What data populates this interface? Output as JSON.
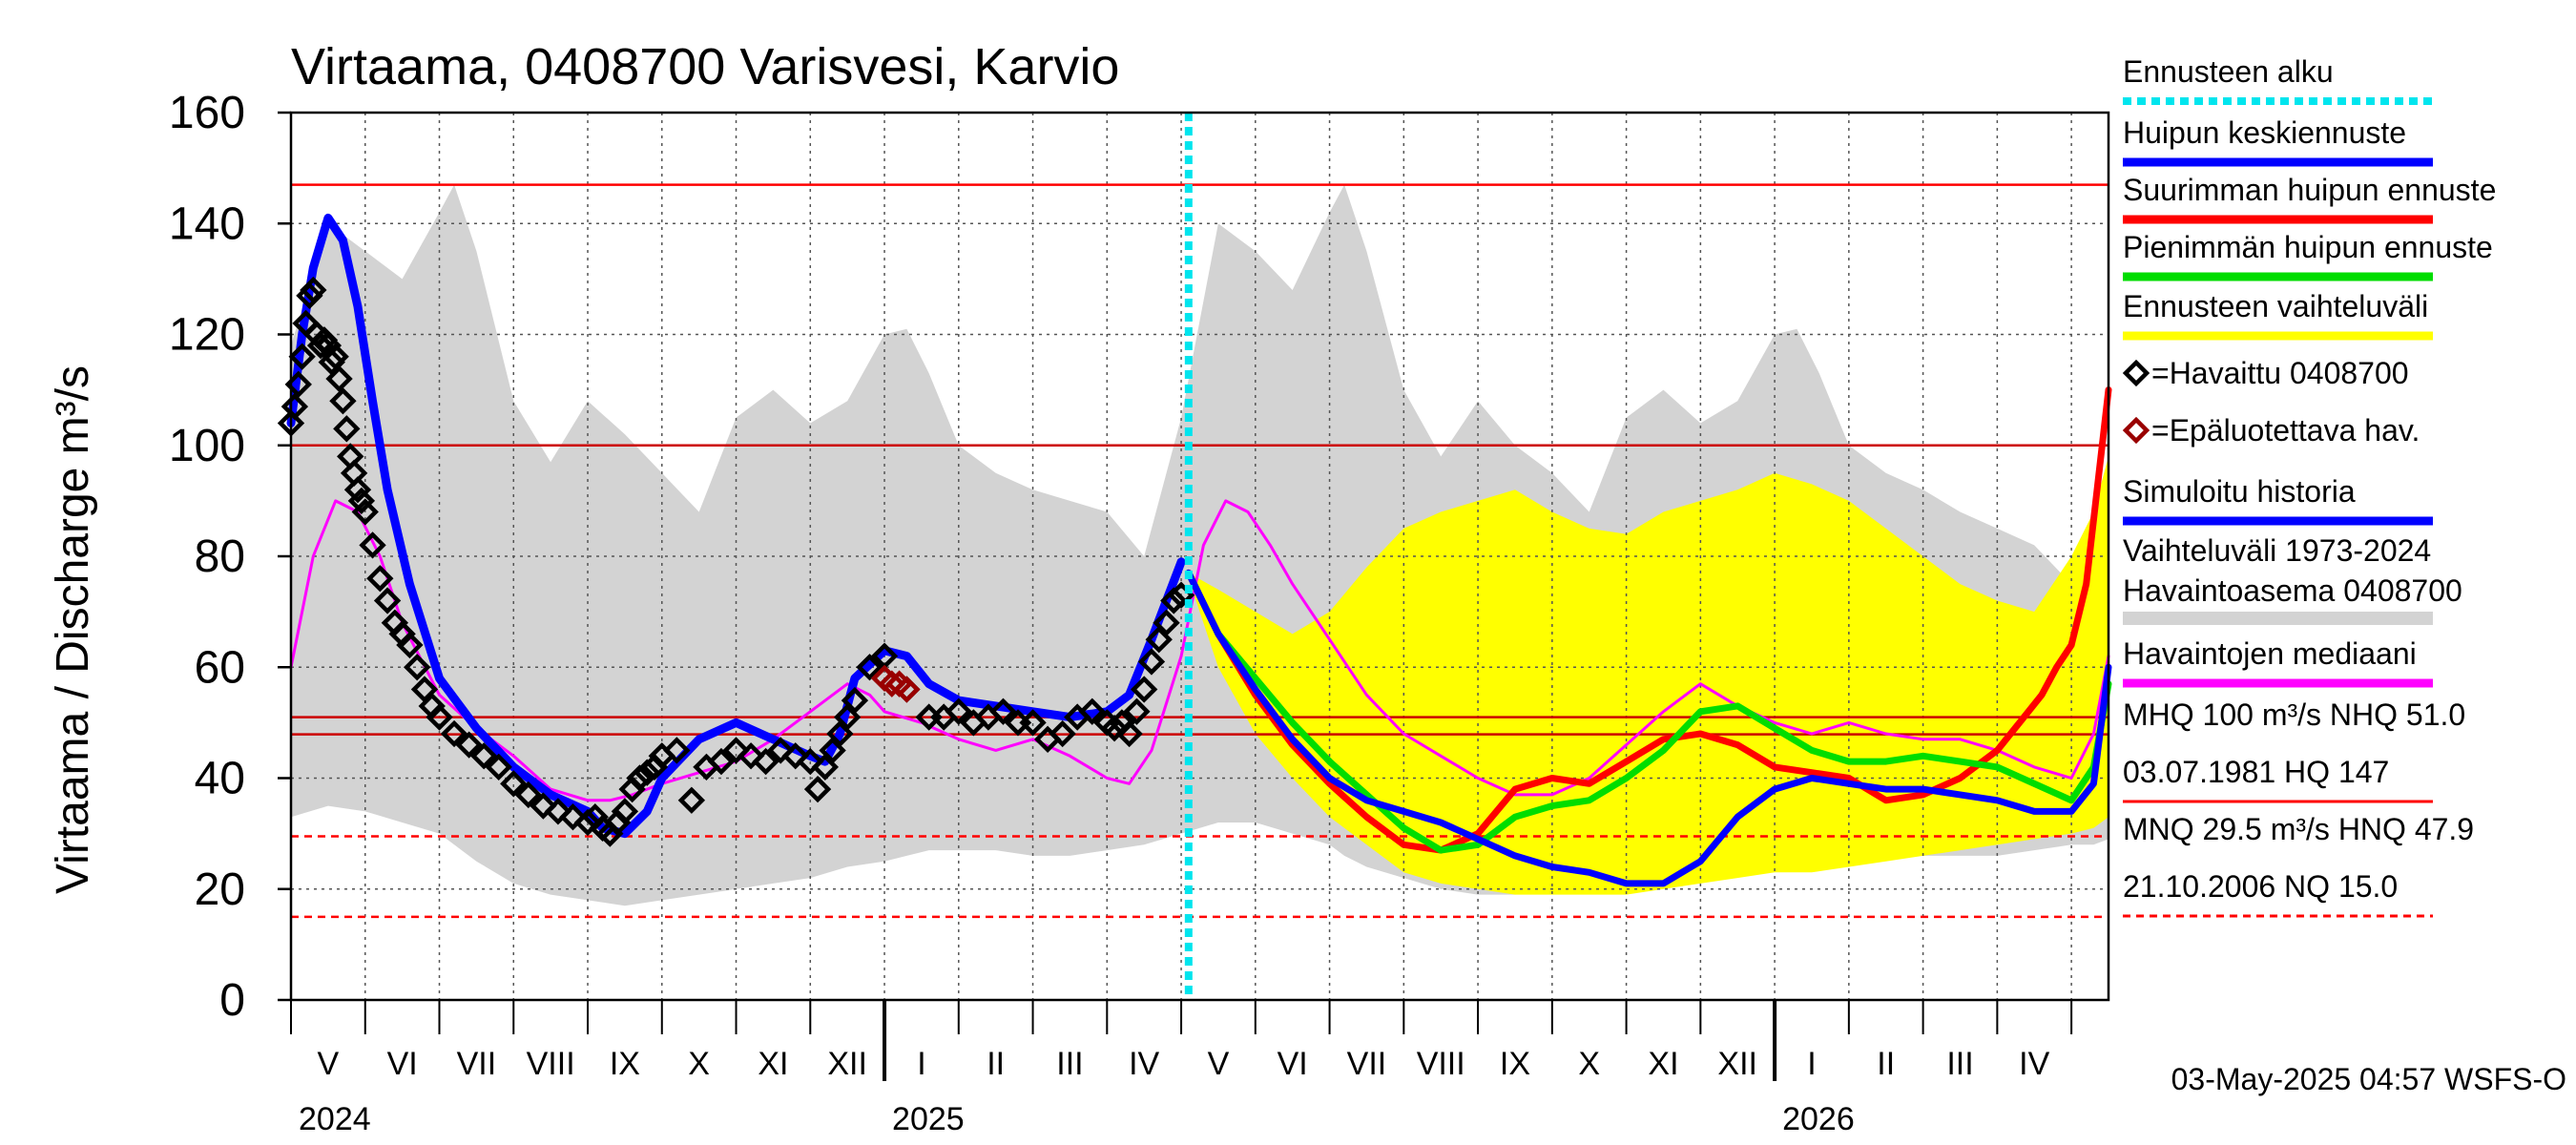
{
  "chart_data": {
    "type": "line",
    "title": "Virtaama, 0408700 Varisvesi, Karvio",
    "ylabel": "Virtaama / Discharge    m³/s",
    "ylim": [
      0,
      160
    ],
    "yticks": [
      "0",
      "20",
      "40",
      "60",
      "80",
      "100",
      "120",
      "140",
      "160"
    ],
    "ytick_values": [
      0,
      20,
      40,
      60,
      80,
      100,
      120,
      140,
      160
    ],
    "xlim": [
      0,
      24.5
    ],
    "grid": true,
    "months": [
      {
        "label": "V",
        "at": 0.5
      },
      {
        "label": "VI",
        "at": 1.5
      },
      {
        "label": "VII",
        "at": 2.5
      },
      {
        "label": "VIII",
        "at": 3.5
      },
      {
        "label": "IX",
        "at": 4.5
      },
      {
        "label": "X",
        "at": 5.5
      },
      {
        "label": "XI",
        "at": 6.5
      },
      {
        "label": "XII",
        "at": 7.5
      },
      {
        "label": "I",
        "at": 8.5
      },
      {
        "label": "II",
        "at": 9.5
      },
      {
        "label": "III",
        "at": 10.5
      },
      {
        "label": "IV",
        "at": 11.5
      },
      {
        "label": "V",
        "at": 12.5
      },
      {
        "label": "VI",
        "at": 13.5
      },
      {
        "label": "VII",
        "at": 14.5
      },
      {
        "label": "VIII",
        "at": 15.5
      },
      {
        "label": "IX",
        "at": 16.5
      },
      {
        "label": "X",
        "at": 17.5
      },
      {
        "label": "XI",
        "at": 18.5
      },
      {
        "label": "XII",
        "at": 19.5
      },
      {
        "label": "I",
        "at": 20.5
      },
      {
        "label": "II",
        "at": 21.5
      },
      {
        "label": "III",
        "at": 22.5
      },
      {
        "label": "IV",
        "at": 23.5
      }
    ],
    "years": [
      {
        "label": "2024",
        "at": 0
      },
      {
        "label": "2025",
        "at": 8
      },
      {
        "label": "2026",
        "at": 20
      }
    ],
    "year_boundaries": [
      8,
      20
    ],
    "forecast_start": 12.1,
    "reference_lines": [
      {
        "name": "HQ",
        "value": 147,
        "style": "solid",
        "color": "#ff0000"
      },
      {
        "name": "MHQ",
        "value": 100,
        "style": "solid",
        "color": "#cc0000"
      },
      {
        "name": "NHQ",
        "value": 51.0,
        "style": "solid",
        "color": "#cc0000"
      },
      {
        "name": "HNQ",
        "value": 47.9,
        "style": "solid",
        "color": "#cc0000"
      },
      {
        "name": "MNQ",
        "value": 29.5,
        "style": "dashed",
        "color": "#ff0000"
      },
      {
        "name": "NQ",
        "value": 15.0,
        "style": "dashed",
        "color": "#ff0000"
      }
    ],
    "historical_band": {
      "name": "Vaihteluväli 1973-2024 Havaintoasema 0408700",
      "color": "#d3d3d3",
      "x": [
        0,
        0.5,
        1.0,
        1.5,
        2.0,
        2.2,
        2.5,
        3.0,
        3.5,
        4.0,
        4.5,
        5.0,
        5.5,
        6.0,
        6.5,
        7.0,
        7.5,
        8.0,
        8.3,
        8.6,
        9.0,
        9.5,
        10.0,
        10.5,
        11.0,
        11.5,
        12.0,
        12.5,
        13.0,
        13.5,
        14.0,
        14.2,
        14.5,
        15.0,
        15.5,
        16.0,
        16.5,
        17.0,
        17.5,
        18.0,
        18.5,
        19.0,
        19.5,
        20.0,
        20.3,
        20.6,
        21.0,
        21.5,
        22.0,
        22.5,
        23.0,
        23.5,
        24.0,
        24.3,
        24.5
      ],
      "high": [
        118,
        140,
        135,
        130,
        142,
        147,
        135,
        108,
        97,
        108,
        102,
        95,
        88,
        105,
        110,
        104,
        108,
        120,
        121,
        113,
        100,
        95,
        92,
        90,
        88,
        80,
        105,
        140,
        135,
        128,
        142,
        147,
        135,
        110,
        98,
        108,
        100,
        95,
        88,
        105,
        110,
        104,
        108,
        120,
        121,
        113,
        100,
        95,
        92,
        88,
        85,
        82,
        75,
        70,
        62
      ],
      "low": [
        33,
        35,
        34,
        32,
        30,
        28,
        25,
        21,
        19,
        18,
        17,
        18,
        19,
        20,
        21,
        22,
        24,
        25,
        26,
        27,
        27,
        27,
        26,
        26,
        27,
        28,
        30,
        32,
        32,
        30,
        28,
        26,
        24,
        22,
        20,
        19,
        19,
        20,
        22,
        24,
        25,
        25,
        26,
        27,
        27,
        27,
        27,
        26,
        26,
        26,
        26,
        27,
        28,
        28,
        29
      ]
    },
    "forecast_band": {
      "name": "Ennusteen vaihteluväli",
      "color": "#ffff00",
      "x": [
        12.1,
        12.5,
        13.0,
        13.5,
        14.0,
        14.5,
        15.0,
        15.5,
        16.0,
        16.5,
        17.0,
        17.5,
        18.0,
        18.5,
        19.0,
        19.5,
        20.0,
        20.5,
        21.0,
        21.5,
        22.0,
        22.5,
        23.0,
        23.5,
        24.0,
        24.3,
        24.5
      ],
      "high": [
        77,
        74,
        70,
        66,
        70,
        78,
        85,
        88,
        90,
        92,
        88,
        85,
        84,
        88,
        90,
        92,
        95,
        93,
        90,
        85,
        80,
        75,
        72,
        70,
        80,
        88,
        98
      ],
      "low": [
        76,
        60,
        48,
        40,
        33,
        28,
        23,
        21,
        20,
        19,
        19,
        19,
        19,
        20,
        21,
        22,
        23,
        23,
        24,
        25,
        26,
        27,
        28,
        29,
        30,
        31,
        33
      ]
    },
    "series": [
      {
        "name": "Havaintojen mediaani",
        "color": "#ff00ff",
        "width": 3,
        "x": [
          0,
          0.3,
          0.6,
          0.9,
          1.2,
          1.5,
          2.0,
          2.5,
          3.0,
          3.5,
          4.0,
          4.3,
          4.6,
          5.0,
          5.5,
          6.0,
          6.5,
          7.0,
          7.5,
          7.8,
          8.0,
          8.5,
          9.0,
          9.5,
          10.0,
          10.5,
          11.0,
          11.3,
          11.6,
          12.0,
          12.3,
          12.6,
          12.9,
          13.2,
          13.5,
          14.0,
          14.5,
          15.0,
          15.5,
          16.0,
          16.5,
          17.0,
          17.5,
          18.0,
          18.5,
          19.0,
          19.5,
          20.0,
          20.5,
          21.0,
          21.5,
          22.0,
          22.5,
          23.0,
          23.5,
          24.0,
          24.3,
          24.5
        ],
        "y": [
          60,
          80,
          90,
          88,
          80,
          68,
          55,
          49,
          44,
          38,
          36,
          36,
          37,
          39,
          41,
          43,
          47,
          52,
          57,
          55,
          52,
          50,
          47,
          45,
          47,
          44,
          40,
          39,
          45,
          62,
          82,
          90,
          88,
          82,
          75,
          65,
          55,
          48,
          44,
          40,
          37,
          37,
          40,
          46,
          52,
          57,
          53,
          50,
          48,
          50,
          48,
          47,
          47,
          45,
          42,
          40,
          48,
          62
        ]
      },
      {
        "name": "Simuloitu historia",
        "color": "#0000ff",
        "width": 9,
        "x": [
          0,
          0.15,
          0.3,
          0.5,
          0.7,
          0.9,
          1.1,
          1.3,
          1.6,
          2.0,
          2.5,
          3.0,
          3.5,
          4.0,
          4.2,
          4.5,
          4.8,
          5.0,
          5.5,
          6.0,
          6.5,
          7.0,
          7.2,
          7.4,
          7.6,
          8.0,
          8.3,
          8.6,
          9.0,
          9.5,
          10.0,
          10.5,
          11.0,
          11.3,
          11.6,
          12.0
        ],
        "y": [
          104,
          120,
          132,
          141,
          137,
          125,
          108,
          92,
          75,
          58,
          49,
          42,
          37,
          34,
          31,
          30,
          34,
          40,
          47,
          50,
          47,
          44,
          43,
          48,
          58,
          63,
          62,
          57,
          54,
          53,
          52,
          51,
          52,
          55,
          65,
          79
        ]
      },
      {
        "name": "Suurimman huipun ennuste",
        "color": "#ff0000",
        "width": 7,
        "x": [
          12.1,
          12.5,
          13.0,
          13.5,
          14.0,
          14.5,
          15.0,
          15.5,
          16.0,
          16.5,
          17.0,
          17.5,
          18.0,
          18.5,
          19.0,
          19.5,
          20.0,
          20.5,
          21.0,
          21.5,
          22.0,
          22.5,
          23.0,
          23.3,
          23.6,
          23.8,
          24.0,
          24.2,
          24.5
        ],
        "y": [
          77,
          66,
          55,
          46,
          39,
          33,
          28,
          27,
          30,
          38,
          40,
          39,
          43,
          47,
          48,
          46,
          42,
          41,
          40,
          36,
          37,
          40,
          45,
          50,
          55,
          60,
          64,
          75,
          110
        ]
      },
      {
        "name": "Pienimmän huipun ennuste",
        "color": "#00dd00",
        "width": 7,
        "x": [
          12.1,
          12.5,
          13.0,
          13.5,
          14.0,
          14.5,
          15.0,
          15.5,
          16.0,
          16.5,
          17.0,
          17.5,
          18.0,
          18.5,
          19.0,
          19.5,
          20.0,
          20.5,
          21.0,
          21.5,
          22.0,
          22.5,
          23.0,
          23.5,
          24.0,
          24.3,
          24.5
        ],
        "y": [
          77,
          66,
          58,
          50,
          43,
          37,
          31,
          27,
          28,
          33,
          35,
          36,
          40,
          45,
          52,
          53,
          49,
          45,
          43,
          43,
          44,
          43,
          42,
          39,
          36,
          42,
          57
        ]
      },
      {
        "name": "Huipun keskiennuste",
        "color": "#0000ff",
        "width": 7,
        "x": [
          12.1,
          12.5,
          13.0,
          13.5,
          14.0,
          14.5,
          15.0,
          15.5,
          16.0,
          16.5,
          17.0,
          17.5,
          18.0,
          18.5,
          19.0,
          19.5,
          20.0,
          20.5,
          21.0,
          21.5,
          22.0,
          22.5,
          23.0,
          23.5,
          24.0,
          24.3,
          24.5
        ],
        "y": [
          77,
          66,
          56,
          47,
          40,
          36,
          34,
          32,
          29,
          26,
          24,
          23,
          21,
          21,
          25,
          33,
          38,
          40,
          39,
          38,
          38,
          37,
          36,
          34,
          34,
          39,
          60
        ]
      }
    ],
    "observed": {
      "name": "=Havaittu 0408700",
      "color": "#000000",
      "x": [
        0,
        0.05,
        0.1,
        0.15,
        0.2,
        0.25,
        0.3,
        0.35,
        0.4,
        0.45,
        0.5,
        0.55,
        0.6,
        0.65,
        0.7,
        0.75,
        0.8,
        0.85,
        0.9,
        0.95,
        1.0,
        1.1,
        1.2,
        1.3,
        1.4,
        1.5,
        1.6,
        1.7,
        1.8,
        1.9,
        2.0,
        2.2,
        2.4,
        2.6,
        2.8,
        3.0,
        3.2,
        3.4,
        3.6,
        3.8,
        4.0,
        4.1,
        4.2,
        4.3,
        4.4,
        4.5,
        4.6,
        4.7,
        4.8,
        4.9,
        5.0,
        5.2,
        5.4,
        5.6,
        5.8,
        6.0,
        6.2,
        6.4,
        6.6,
        6.8,
        7.0,
        7.1,
        7.2,
        7.3,
        7.4,
        7.5,
        7.6,
        7.8,
        8.0,
        8.3,
        8.6,
        8.8,
        9.0,
        9.2,
        9.4,
        9.6,
        9.8,
        10.0,
        10.2,
        10.4,
        10.6,
        10.8,
        11.0,
        11.1,
        11.2,
        11.3,
        11.4,
        11.5,
        11.6,
        11.7,
        11.8,
        11.9,
        12.0
      ],
      "y": [
        104,
        107,
        111,
        116,
        122,
        127,
        128,
        120,
        118,
        119,
        118,
        115,
        116,
        112,
        108,
        103,
        98,
        95,
        92,
        90,
        88,
        82,
        76,
        72,
        68,
        66,
        64,
        60,
        56,
        53,
        51,
        48,
        46,
        44,
        42,
        39,
        37,
        35,
        34,
        33,
        32,
        33,
        31,
        30,
        32,
        34,
        38,
        40,
        41,
        42,
        44,
        45,
        36,
        42,
        43,
        45,
        44,
        43,
        45,
        44,
        43,
        38,
        42,
        45,
        48,
        51,
        54,
        60,
        62,
        56,
        51,
        51,
        52,
        50,
        51,
        52,
        50,
        50,
        47,
        48,
        51,
        52,
        50,
        49,
        50,
        48,
        52,
        56,
        61,
        65,
        68,
        72,
        73
      ]
    },
    "unreliable": {
      "name": "=Epäluotettava hav.",
      "color": "#990000",
      "x": [
        8.0,
        8.1,
        8.2,
        8.3
      ],
      "y": [
        58,
        57,
        57,
        56
      ]
    },
    "legend": {
      "placement": "right",
      "items": [
        {
          "label": "Ennusteen alku",
          "kind": "dashed",
          "color": "#00e5ee"
        },
        {
          "label": "Huipun keskiennuste",
          "kind": "line",
          "color": "#0000ff"
        },
        {
          "label": "Suurimman huipun ennuste",
          "kind": "line",
          "color": "#ff0000"
        },
        {
          "label": "Pienimmän huipun ennuste",
          "kind": "line",
          "color": "#00dd00"
        },
        {
          "label": "Ennusteen vaihteluväli",
          "kind": "line",
          "color": "#ffff00"
        },
        {
          "label": "=Havaittu 0408700",
          "kind": "diamond",
          "color": "#000000"
        },
        {
          "label": "=Epäluotettava hav.",
          "kind": "diamond",
          "color": "#990000"
        },
        {
          "label": "Simuloitu historia",
          "kind": "line",
          "color": "#0000ff"
        },
        {
          "label": "Vaihteluväli 1973-2024",
          "kind": "text"
        },
        {
          "label": " Havaintoasema 0408700",
          "kind": "line",
          "color": "#d3d3d3"
        },
        {
          "label": "Havaintojen mediaani",
          "kind": "line",
          "color": "#ff00ff"
        },
        {
          "label": "MHQ  100 m³/s NHQ 51.0",
          "kind": "text"
        },
        {
          "label": "03.07.1981 HQ  147",
          "kind": "line",
          "color": "#ff0000"
        },
        {
          "label": "MNQ 29.5 m³/s HNQ 47.9",
          "kind": "text"
        },
        {
          "label": "21.10.2006 NQ 15.0",
          "kind": "dashed",
          "color": "#ff0000"
        }
      ]
    },
    "footer": "03-May-2025 04:57 WSFS-O"
  }
}
